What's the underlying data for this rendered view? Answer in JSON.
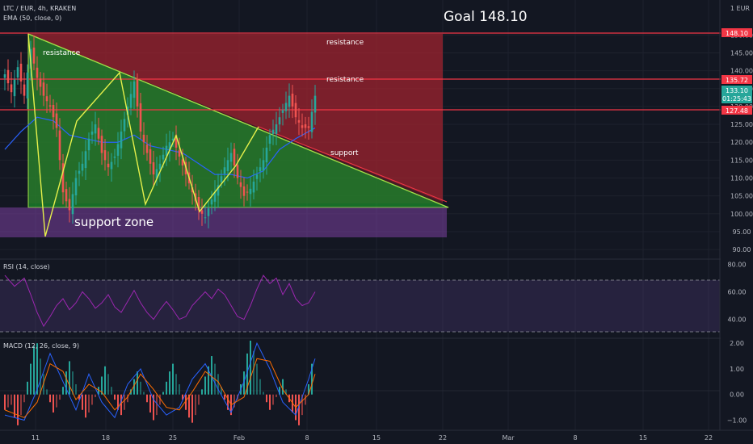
{
  "header": {
    "symbol": "LTC / EUR, 4h, KRAKEN",
    "ema_label": "EMA (50, close, 0)",
    "goal": "Goal 148.10",
    "currency": "1 EUR"
  },
  "annotations": {
    "resistance_left": "resistance",
    "resistance_top": "resistance",
    "resistance_mid": "resistance",
    "support": "support",
    "support_zone": "support zone"
  },
  "price_tags": {
    "goal": "148.10",
    "resistance": "135.72",
    "last": "133.10",
    "countdown": "01:25:43",
    "support_line": "127.48"
  },
  "panels": {
    "rsi_label": "RSI (14, close)",
    "macd_label": "MACD (12, 26, close, 9)"
  },
  "colors": {
    "background": "#131722",
    "up": "#26a69a",
    "down": "#ef5350",
    "resistance_line": "#f23645",
    "rsi_line": "#9c27b0",
    "macd_line": "#2962ff",
    "signal_line": "#ff6d00",
    "zigzag": "#e6f04b"
  },
  "chart_data": {
    "type": "candlestick",
    "price_axis": {
      "ticks": [
        90,
        95,
        100,
        105,
        110,
        115,
        120,
        125,
        130,
        135,
        140,
        145,
        150
      ],
      "range": [
        88,
        153
      ]
    },
    "rsi_axis": {
      "ticks": [
        40,
        60,
        80
      ],
      "bands": [
        30,
        70
      ],
      "range": [
        28,
        82
      ]
    },
    "macd_axis": {
      "ticks": [
        -1,
        0,
        1,
        2
      ],
      "range": [
        -1.3,
        2.1
      ]
    },
    "time_axis": {
      "labels": [
        "11",
        "18",
        "25",
        "Feb",
        "8",
        "15",
        "22",
        "Mar",
        "8",
        "15",
        "22"
      ]
    },
    "levels": [
      148.1,
      135.72,
      127.48
    ],
    "support_zone": [
      94,
      102
    ],
    "price_path": [
      [
        0,
        139
      ],
      [
        2,
        134
      ],
      [
        4,
        141
      ],
      [
        6,
        133
      ],
      [
        8,
        146
      ],
      [
        10,
        138
      ],
      [
        12,
        133
      ],
      [
        14,
        130
      ],
      [
        16,
        124
      ],
      [
        18,
        106
      ],
      [
        20,
        101
      ],
      [
        22,
        110
      ],
      [
        24,
        114
      ],
      [
        26,
        121
      ],
      [
        28,
        125
      ],
      [
        30,
        117
      ],
      [
        32,
        113
      ],
      [
        34,
        116
      ],
      [
        36,
        123
      ],
      [
        38,
        130
      ],
      [
        40,
        137
      ],
      [
        42,
        123
      ],
      [
        44,
        117
      ],
      [
        46,
        111
      ],
      [
        48,
        114
      ],
      [
        50,
        119
      ],
      [
        52,
        121
      ],
      [
        54,
        116
      ],
      [
        56,
        111
      ],
      [
        58,
        106
      ],
      [
        60,
        101
      ],
      [
        62,
        99
      ],
      [
        64,
        104
      ],
      [
        66,
        108
      ],
      [
        68,
        113
      ],
      [
        70,
        117
      ],
      [
        72,
        110
      ],
      [
        74,
        105
      ],
      [
        76,
        107
      ],
      [
        78,
        111
      ],
      [
        80,
        115
      ],
      [
        82,
        122
      ],
      [
        84,
        125
      ],
      [
        86,
        129
      ],
      [
        88,
        133
      ],
      [
        90,
        127
      ],
      [
        92,
        124
      ],
      [
        94,
        124
      ],
      [
        96,
        133
      ]
    ],
    "ema50": [
      [
        0,
        118
      ],
      [
        5,
        123
      ],
      [
        10,
        127
      ],
      [
        15,
        126
      ],
      [
        20,
        122
      ],
      [
        25,
        121
      ],
      [
        30,
        120
      ],
      [
        35,
        120
      ],
      [
        40,
        122
      ],
      [
        45,
        119
      ],
      [
        50,
        118
      ],
      [
        55,
        117
      ],
      [
        60,
        114
      ],
      [
        65,
        111
      ],
      [
        70,
        111
      ],
      [
        75,
        110
      ],
      [
        80,
        112
      ],
      [
        85,
        118
      ],
      [
        90,
        121
      ],
      [
        96,
        124
      ]
    ],
    "rsi": [
      [
        0,
        72
      ],
      [
        3,
        64
      ],
      [
        6,
        70
      ],
      [
        8,
        58
      ],
      [
        10,
        45
      ],
      [
        12,
        35
      ],
      [
        14,
        42
      ],
      [
        16,
        50
      ],
      [
        18,
        55
      ],
      [
        20,
        47
      ],
      [
        22,
        52
      ],
      [
        24,
        60
      ],
      [
        26,
        55
      ],
      [
        28,
        48
      ],
      [
        30,
        52
      ],
      [
        32,
        58
      ],
      [
        34,
        49
      ],
      [
        36,
        45
      ],
      [
        38,
        53
      ],
      [
        40,
        61
      ],
      [
        42,
        52
      ],
      [
        44,
        45
      ],
      [
        46,
        40
      ],
      [
        48,
        47
      ],
      [
        50,
        53
      ],
      [
        52,
        47
      ],
      [
        54,
        40
      ],
      [
        56,
        42
      ],
      [
        58,
        50
      ],
      [
        60,
        55
      ],
      [
        62,
        60
      ],
      [
        64,
        55
      ],
      [
        66,
        62
      ],
      [
        68,
        58
      ],
      [
        70,
        50
      ],
      [
        72,
        42
      ],
      [
        74,
        40
      ],
      [
        76,
        50
      ],
      [
        78,
        62
      ],
      [
        80,
        72
      ],
      [
        82,
        66
      ],
      [
        84,
        70
      ],
      [
        86,
        58
      ],
      [
        88,
        66
      ],
      [
        90,
        55
      ],
      [
        92,
        50
      ],
      [
        94,
        52
      ],
      [
        96,
        60
      ]
    ],
    "macd_hist": [
      -0.6,
      -0.5,
      -0.4,
      -0.9,
      -1.2,
      -0.8,
      -0.3,
      0.5,
      1.2,
      1.9,
      2.0,
      1.4,
      0.8,
      0.2,
      -0.3,
      -0.7,
      -0.5,
      -0.2,
      0.3,
      0.9,
      1.3,
      0.9,
      0.4,
      -0.2,
      -0.6,
      -0.9,
      -0.7,
      -0.4,
      -0.1,
      0.3,
      0.7,
      1.1,
      0.8,
      0.3,
      -0.2,
      -0.6,
      -0.8,
      -0.6,
      -0.3,
      0.2,
      0.6,
      0.9,
      0.5,
      0.1,
      -0.3,
      -0.7,
      -1.0,
      -0.8,
      -0.4,
      0.1,
      0.5,
      0.9,
      1.2,
      0.8,
      0.4,
      -0.2,
      -0.6,
      -0.9,
      -1.1,
      -0.8,
      -0.4,
      0.2,
      0.7,
      1.1,
      1.5,
      1.2,
      0.8,
      0.3,
      -0.2,
      -0.6,
      -0.8,
      -0.5,
      -0.2,
      0.4,
      0.9,
      1.6,
      2.1,
      1.7,
      1.2,
      0.6,
      0.1,
      -0.3,
      -0.6,
      -0.4,
      -0.1,
      0.3,
      0.6,
      0.2,
      -0.3,
      -0.7,
      -1.0,
      -1.2,
      -0.8,
      -0.4,
      0.4,
      1.2
    ],
    "macd_line": [
      [
        0,
        -0.8
      ],
      [
        6,
        -1.0
      ],
      [
        10,
        0.2
      ],
      [
        14,
        1.6
      ],
      [
        18,
        0.5
      ],
      [
        22,
        -0.6
      ],
      [
        26,
        0.8
      ],
      [
        30,
        -0.3
      ],
      [
        34,
        -0.9
      ],
      [
        38,
        0.4
      ],
      [
        42,
        1.0
      ],
      [
        46,
        -0.2
      ],
      [
        50,
        -0.8
      ],
      [
        54,
        -0.5
      ],
      [
        58,
        0.6
      ],
      [
        62,
        1.2
      ],
      [
        66,
        0.2
      ],
      [
        70,
        -0.7
      ],
      [
        74,
        0.5
      ],
      [
        78,
        2.0
      ],
      [
        82,
        1.0
      ],
      [
        86,
        -0.3
      ],
      [
        90,
        -0.8
      ],
      [
        94,
        0.6
      ],
      [
        96,
        1.4
      ]
    ],
    "signal_line": [
      [
        0,
        -0.6
      ],
      [
        6,
        -0.9
      ],
      [
        10,
        -0.3
      ],
      [
        14,
        1.2
      ],
      [
        18,
        0.9
      ],
      [
        22,
        -0.2
      ],
      [
        26,
        0.4
      ],
      [
        30,
        0.1
      ],
      [
        34,
        -0.6
      ],
      [
        38,
        -0.1
      ],
      [
        42,
        0.8
      ],
      [
        46,
        0.2
      ],
      [
        50,
        -0.5
      ],
      [
        54,
        -0.6
      ],
      [
        58,
        0.1
      ],
      [
        62,
        0.9
      ],
      [
        66,
        0.5
      ],
      [
        70,
        -0.4
      ],
      [
        74,
        -0.1
      ],
      [
        78,
        1.4
      ],
      [
        82,
        1.3
      ],
      [
        86,
        0.2
      ],
      [
        90,
        -0.5
      ],
      [
        94,
        0.0
      ],
      [
        96,
        0.8
      ]
    ]
  }
}
